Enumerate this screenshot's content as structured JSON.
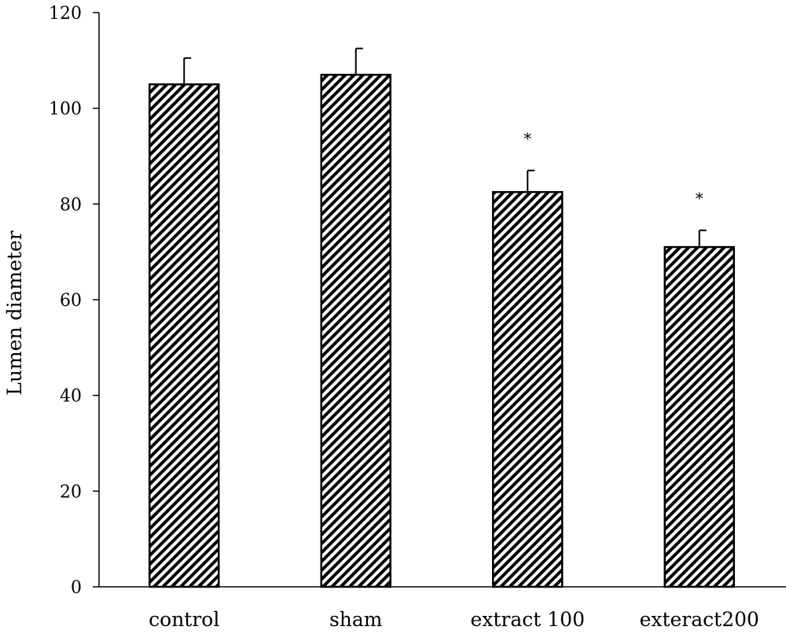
{
  "chart_data": {
    "type": "bar",
    "title": "",
    "xlabel": "",
    "ylabel": "Lumen diameter",
    "ylim": [
      0,
      120
    ],
    "yticks": [
      0,
      20,
      40,
      60,
      80,
      100,
      120
    ],
    "categories": [
      "control",
      "sham",
      "extract 100",
      "exteract200"
    ],
    "values": [
      105,
      107,
      82.5,
      71
    ],
    "error_upper": [
      5.5,
      5.5,
      4.5,
      3.5
    ],
    "annotations": [
      "",
      "",
      "*",
      "*"
    ],
    "grid": false,
    "legend": "none",
    "bar_fill": "diagonal-hatch",
    "colors": {
      "bar_stroke": "#000000",
      "hatch": "#000000",
      "background": "#ffffff"
    }
  }
}
